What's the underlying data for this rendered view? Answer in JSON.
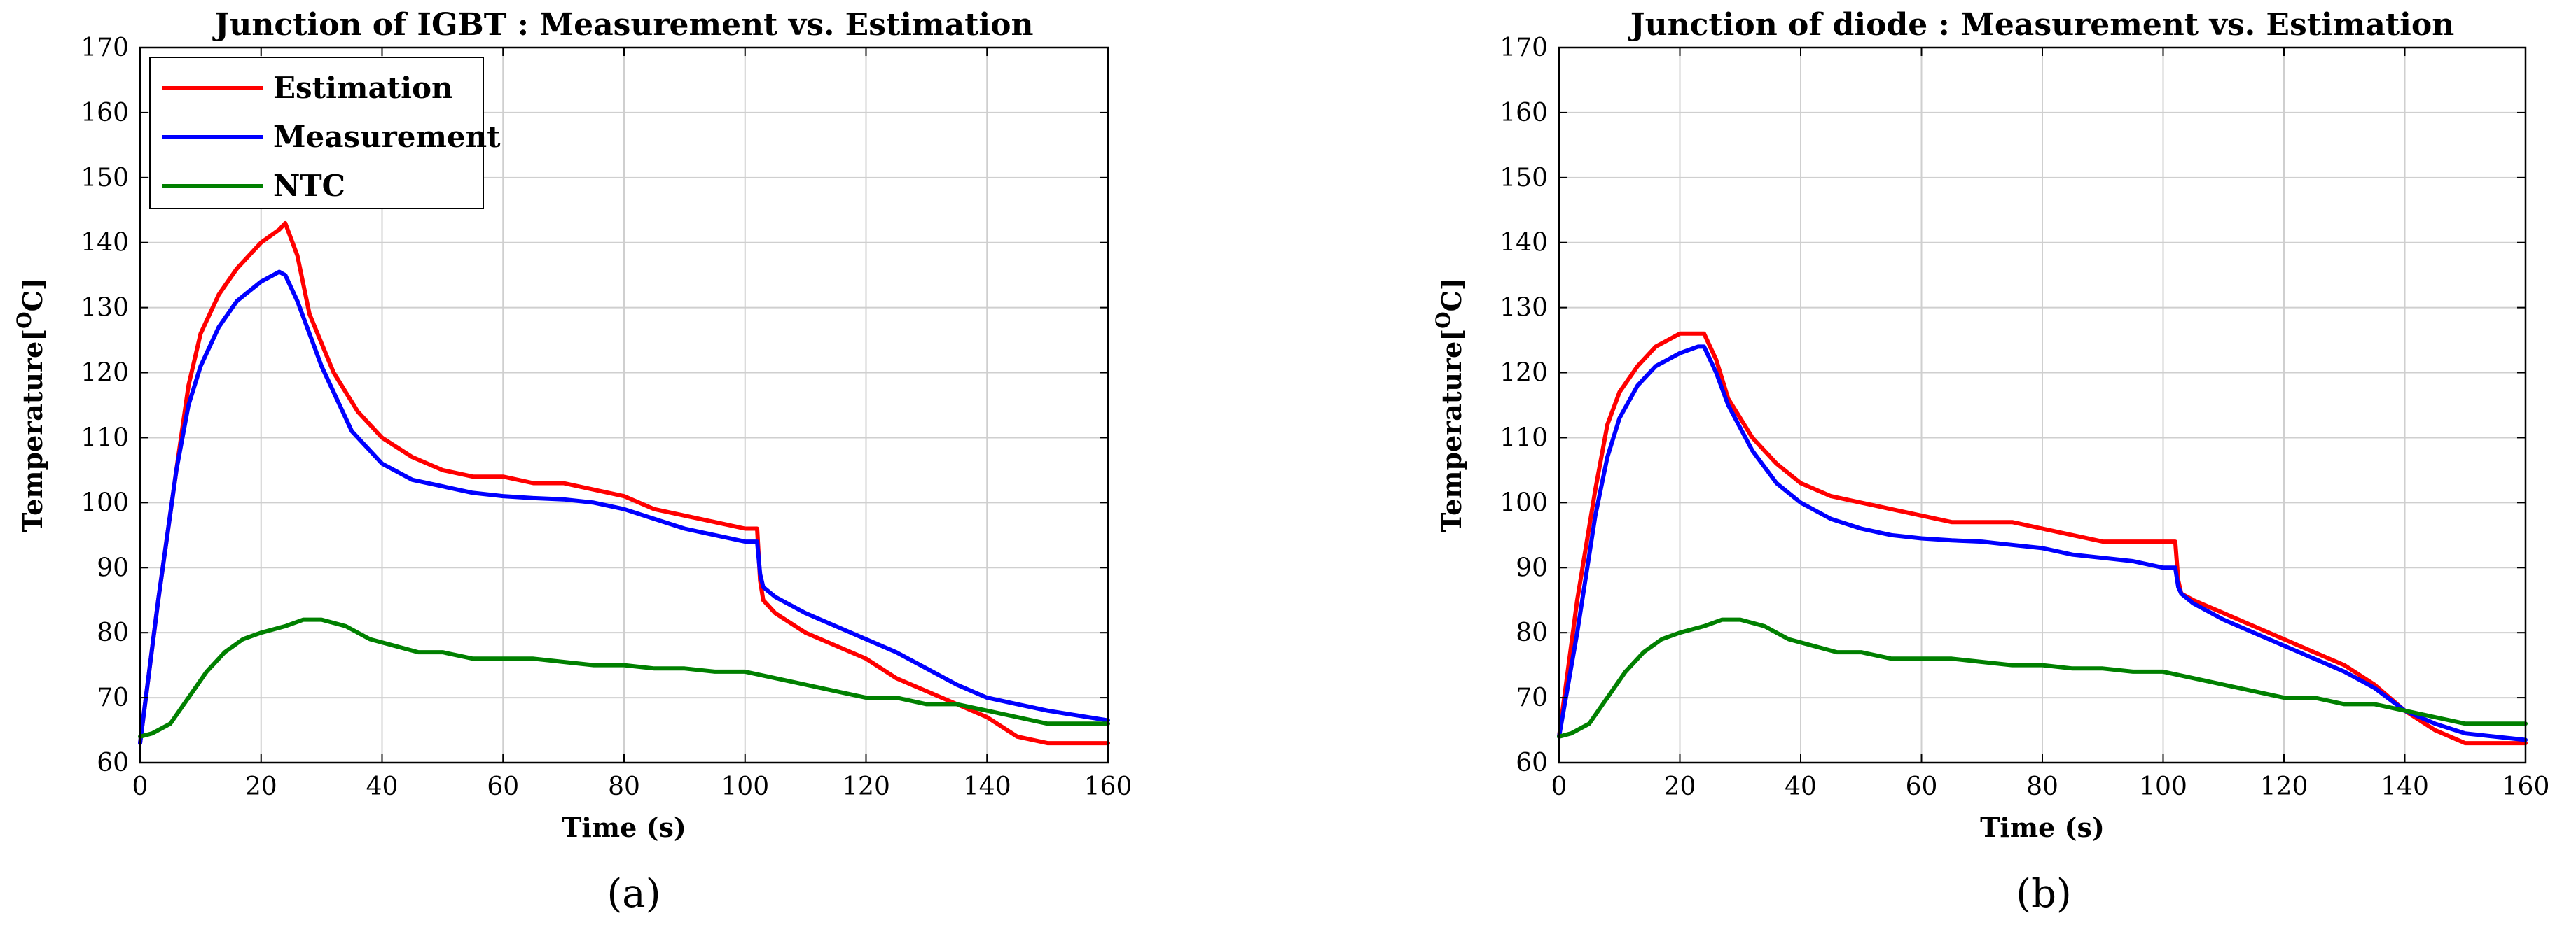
{
  "chart_data": [
    {
      "type": "line",
      "title": "Junction of IGBT : Measurement vs. Estimation",
      "xlabel": "Time (s)",
      "ylabel_main": "Temperature[",
      "ylabel_sup": "O",
      "ylabel_end": "C]",
      "xlim": [
        0,
        160
      ],
      "ylim": [
        60,
        170
      ],
      "xticks": [
        0,
        20,
        40,
        60,
        80,
        100,
        120,
        140,
        160
      ],
      "yticks": [
        60,
        70,
        80,
        90,
        100,
        110,
        120,
        130,
        140,
        150,
        160,
        170
      ],
      "grid": true,
      "legend_position": "top-left",
      "caption": "(a)",
      "series": [
        {
          "name": "Estimation",
          "color": "#ff0000",
          "x": [
            0,
            3,
            6,
            8,
            10,
            13,
            16,
            20,
            23,
            24,
            26,
            28,
            32,
            36,
            40,
            45,
            50,
            55,
            60,
            65,
            70,
            75,
            80,
            85,
            90,
            95,
            100,
            102,
            102.5,
            103,
            105,
            110,
            115,
            120,
            125,
            130,
            135,
            140,
            145,
            150,
            160
          ],
          "y": [
            63,
            85,
            105,
            118,
            126,
            132,
            136,
            140,
            142,
            143,
            138,
            129,
            120,
            114,
            110,
            107,
            105,
            104,
            104,
            103,
            103,
            102,
            101,
            99,
            98,
            97,
            96,
            96,
            88,
            85,
            83,
            80,
            78,
            76,
            73,
            71,
            69,
            67,
            64,
            63,
            63
          ]
        },
        {
          "name": "Measurement",
          "color": "#0000ff",
          "x": [
            0,
            3,
            6,
            8,
            10,
            13,
            16,
            20,
            23,
            24,
            26,
            30,
            35,
            40,
            45,
            50,
            55,
            60,
            65,
            70,
            75,
            80,
            85,
            90,
            95,
            100,
            102,
            102.5,
            103,
            105,
            110,
            115,
            120,
            125,
            130,
            135,
            140,
            145,
            150,
            160
          ],
          "y": [
            63,
            85,
            105,
            115,
            121,
            127,
            131,
            134,
            135.5,
            135,
            131,
            121,
            111,
            106,
            103.5,
            102.5,
            101.5,
            101,
            100.7,
            100.5,
            100,
            99,
            97.5,
            96,
            95,
            94,
            94,
            89,
            87,
            85.5,
            83,
            81,
            79,
            77,
            74.5,
            72,
            70,
            69,
            68,
            66.5
          ]
        },
        {
          "name": "NTC",
          "color": "#008000",
          "x": [
            0,
            2,
            5,
            8,
            11,
            14,
            17,
            20,
            24,
            27,
            30,
            34,
            38,
            42,
            46,
            50,
            55,
            60,
            65,
            70,
            75,
            80,
            85,
            90,
            95,
            100,
            105,
            110,
            115,
            120,
            125,
            130,
            135,
            140,
            145,
            150,
            160
          ],
          "y": [
            64,
            64.5,
            66,
            70,
            74,
            77,
            79,
            80,
            81,
            82,
            82,
            81,
            79,
            78,
            77,
            77,
            76,
            76,
            76,
            75.5,
            75,
            75,
            74.5,
            74.5,
            74,
            74,
            73,
            72,
            71,
            70,
            70,
            69,
            69,
            68,
            67,
            66,
            66
          ]
        }
      ]
    },
    {
      "type": "line",
      "title": "Junction of diode : Measurement vs. Estimation",
      "xlabel": "Time (s)",
      "ylabel_main": "Temperature[",
      "ylabel_sup": "O",
      "ylabel_end": "C]",
      "xlim": [
        0,
        160
      ],
      "ylim": [
        60,
        170
      ],
      "xticks": [
        0,
        20,
        40,
        60,
        80,
        100,
        120,
        140,
        160
      ],
      "yticks": [
        60,
        70,
        80,
        90,
        100,
        110,
        120,
        130,
        140,
        150,
        160,
        170
      ],
      "grid": true,
      "legend_position": "none",
      "caption": "(b)",
      "series": [
        {
          "name": "Estimation",
          "color": "#ff0000",
          "x": [
            0,
            3,
            6,
            8,
            10,
            13,
            16,
            18,
            20,
            22,
            24,
            26,
            28,
            32,
            36,
            40,
            45,
            50,
            55,
            60,
            65,
            70,
            75,
            80,
            85,
            90,
            95,
            100,
            102,
            102.5,
            103,
            105,
            110,
            115,
            120,
            125,
            130,
            135,
            140,
            145,
            150,
            160
          ],
          "y": [
            64,
            85,
            102,
            112,
            117,
            121,
            124,
            125,
            126,
            126,
            126,
            122,
            116,
            110,
            106,
            103,
            101,
            100,
            99,
            98,
            97,
            97,
            97,
            96,
            95,
            94,
            94,
            94,
            94,
            88,
            86,
            85,
            83,
            81,
            79,
            77,
            75,
            72,
            68,
            65,
            63,
            63
          ]
        },
        {
          "name": "Measurement",
          "color": "#0000ff",
          "x": [
            0,
            3,
            6,
            8,
            10,
            13,
            16,
            20,
            23,
            24,
            26,
            28,
            32,
            36,
            40,
            45,
            50,
            55,
            60,
            65,
            70,
            75,
            80,
            85,
            90,
            95,
            100,
            102,
            102.5,
            103,
            105,
            110,
            115,
            120,
            125,
            130,
            135,
            140,
            145,
            150,
            160
          ],
          "y": [
            64,
            80,
            98,
            107,
            113,
            118,
            121,
            123,
            124,
            124,
            120,
            115,
            108,
            103,
            100,
            97.5,
            96,
            95,
            94.5,
            94.2,
            94,
            93.5,
            93,
            92,
            91.5,
            91,
            90,
            90,
            87,
            86,
            84.5,
            82,
            80,
            78,
            76,
            74,
            71.5,
            68,
            66,
            64.5,
            63.5
          ]
        },
        {
          "name": "NTC",
          "color": "#008000",
          "x": [
            0,
            2,
            5,
            8,
            11,
            14,
            17,
            20,
            24,
            27,
            30,
            34,
            38,
            42,
            46,
            50,
            55,
            60,
            65,
            70,
            75,
            80,
            85,
            90,
            95,
            100,
            105,
            110,
            115,
            120,
            125,
            130,
            135,
            140,
            145,
            150,
            160
          ],
          "y": [
            64,
            64.5,
            66,
            70,
            74,
            77,
            79,
            80,
            81,
            82,
            82,
            81,
            79,
            78,
            77,
            77,
            76,
            76,
            76,
            75.5,
            75,
            75,
            74.5,
            74.5,
            74,
            74,
            73,
            72,
            71,
            70,
            70,
            69,
            69,
            68,
            67,
            66,
            66
          ]
        }
      ]
    }
  ]
}
